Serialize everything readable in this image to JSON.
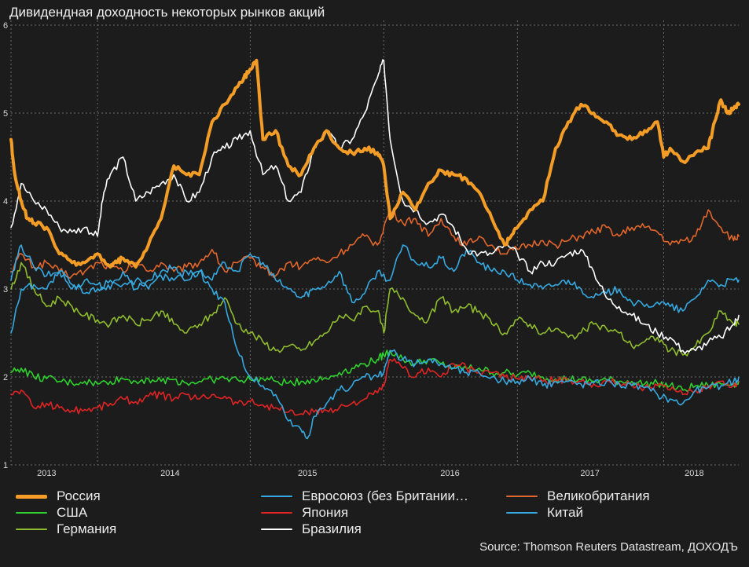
{
  "chart_data": {
    "type": "line",
    "title": "Дивидендная доходность некоторых рынков акций",
    "source": "Source: Thomson Reuters Datastream, ДОХОДЪ",
    "xlabel": "",
    "ylabel": "",
    "xlim": [
      2012.62,
      2018.34
    ],
    "ylim": [
      1,
      6
    ],
    "y_ticks": [
      "1",
      "2",
      "3",
      "4",
      "5",
      "6"
    ],
    "x_ticks": [
      {
        "label": "2013",
        "x": 2012.9
      },
      {
        "label": "2014",
        "x": 2013.87
      },
      {
        "label": "2015",
        "x": 2014.95
      },
      {
        "label": "2016",
        "x": 2016.07
      },
      {
        "label": "2017",
        "x": 2017.17
      },
      {
        "label": "2018",
        "x": 2017.99
      }
    ],
    "grid_lines_x": [
      2012.62,
      2013.3,
      2014.5,
      2015.55,
      2016.6,
      2017.75
    ],
    "grid": true,
    "legend_position": "bottom",
    "series": [
      {
        "name": "Великобритания",
        "color": "#e2662c",
        "width": 1.6,
        "x": [
          2012.62,
          2012.7,
          2012.8,
          2012.9,
          2013.0,
          2013.1,
          2013.2,
          2013.3,
          2013.4,
          2013.5,
          2013.6,
          2013.7,
          2013.8,
          2013.9,
          2014.0,
          2014.1,
          2014.2,
          2014.3,
          2014.4,
          2014.5,
          2014.6,
          2014.7,
          2014.8,
          2014.9,
          2015.0,
          2015.1,
          2015.2,
          2015.3,
          2015.4,
          2015.5,
          2015.55,
          2015.6,
          2015.7,
          2015.8,
          2015.9,
          2016.0,
          2016.1,
          2016.2,
          2016.3,
          2016.4,
          2016.5,
          2016.6,
          2016.7,
          2016.8,
          2016.9,
          2017.0,
          2017.1,
          2017.2,
          2017.3,
          2017.4,
          2017.5,
          2017.6,
          2017.7,
          2017.8,
          2017.9,
          2018.0,
          2018.1,
          2018.2,
          2018.3,
          2018.34
        ],
        "y": [
          3.2,
          3.4,
          3.25,
          3.3,
          3.2,
          3.15,
          3.2,
          3.3,
          3.25,
          3.2,
          3.3,
          3.2,
          3.3,
          3.2,
          3.25,
          3.3,
          3.45,
          3.2,
          3.3,
          3.35,
          3.25,
          3.15,
          3.3,
          3.25,
          3.35,
          3.3,
          3.4,
          3.5,
          3.6,
          3.5,
          3.7,
          3.9,
          3.75,
          3.8,
          3.6,
          3.8,
          3.6,
          3.5,
          3.6,
          3.5,
          3.4,
          3.45,
          3.5,
          3.55,
          3.5,
          3.55,
          3.6,
          3.65,
          3.7,
          3.6,
          3.7,
          3.7,
          3.65,
          3.5,
          3.55,
          3.6,
          3.9,
          3.7,
          3.55,
          3.6
        ]
      },
      {
        "name": "Евросоюз (без Британии…",
        "color": "#36a9e1",
        "width": 1.6,
        "x": [
          2012.62,
          2012.7,
          2012.8,
          2012.9,
          2013.0,
          2013.1,
          2013.2,
          2013.3,
          2013.4,
          2013.5,
          2013.6,
          2013.7,
          2013.8,
          2013.9,
          2014.0,
          2014.1,
          2014.2,
          2014.3,
          2014.4,
          2014.5,
          2014.6,
          2014.7,
          2014.8,
          2014.9,
          2014.95,
          2015.0,
          2015.1,
          2015.2,
          2015.3,
          2015.4,
          2015.5,
          2015.6,
          2015.7,
          2015.8,
          2015.9,
          2016.0,
          2016.1,
          2016.2,
          2016.3,
          2016.4,
          2016.5,
          2016.6,
          2016.7,
          2016.8,
          2016.9,
          2017.0,
          2017.1,
          2017.2,
          2017.3,
          2017.4,
          2017.5,
          2017.6,
          2017.7,
          2017.8,
          2017.9,
          2018.0,
          2018.1,
          2018.2,
          2018.3,
          2018.34
        ],
        "y": [
          3.1,
          3.5,
          3.25,
          3.15,
          3.2,
          3.0,
          3.1,
          3.05,
          3.0,
          3.2,
          3.0,
          3.1,
          3.2,
          3.25,
          3.1,
          3.2,
          3.1,
          3.3,
          3.2,
          3.4,
          3.3,
          3.1,
          3.0,
          2.9,
          2.95,
          3.0,
          3.05,
          3.2,
          2.85,
          2.95,
          3.2,
          3.1,
          3.5,
          3.3,
          3.25,
          3.35,
          3.2,
          3.45,
          3.3,
          3.2,
          3.2,
          3.1,
          3.05,
          3.0,
          3.05,
          3.1,
          3.0,
          2.9,
          2.95,
          3.0,
          2.85,
          2.8,
          2.85,
          2.8,
          2.75,
          2.9,
          3.1,
          3.05,
          3.1,
          3.1
        ]
      },
      {
        "name": "Германия",
        "color": "#8fbc2e",
        "width": 1.6,
        "x": [
          2012.62,
          2012.7,
          2012.8,
          2012.9,
          2013.0,
          2013.1,
          2013.2,
          2013.3,
          2013.4,
          2013.5,
          2013.6,
          2013.7,
          2013.8,
          2013.9,
          2014.0,
          2014.1,
          2014.2,
          2014.3,
          2014.4,
          2014.5,
          2014.6,
          2014.7,
          2014.8,
          2014.9,
          2015.0,
          2015.1,
          2015.2,
          2015.3,
          2015.4,
          2015.5,
          2015.55,
          2015.6,
          2015.7,
          2015.8,
          2015.9,
          2016.0,
          2016.1,
          2016.2,
          2016.3,
          2016.4,
          2016.5,
          2016.6,
          2016.7,
          2016.8,
          2016.9,
          2017.0,
          2017.1,
          2017.2,
          2017.3,
          2017.4,
          2017.5,
          2017.6,
          2017.7,
          2017.8,
          2017.9,
          2018.0,
          2018.1,
          2018.2,
          2018.3,
          2018.34
        ],
        "y": [
          3.0,
          3.3,
          3.0,
          2.8,
          2.9,
          2.8,
          2.7,
          2.65,
          2.6,
          2.7,
          2.6,
          2.65,
          2.75,
          2.6,
          2.5,
          2.6,
          2.7,
          2.9,
          2.6,
          2.5,
          2.4,
          2.3,
          2.35,
          2.3,
          2.4,
          2.5,
          2.7,
          2.65,
          2.8,
          2.75,
          2.5,
          3.0,
          2.9,
          2.7,
          2.65,
          2.9,
          2.75,
          2.8,
          2.75,
          2.6,
          2.5,
          2.65,
          2.6,
          2.5,
          2.55,
          2.45,
          2.5,
          2.6,
          2.55,
          2.5,
          2.35,
          2.4,
          2.45,
          2.3,
          2.25,
          2.35,
          2.5,
          2.75,
          2.6,
          2.6
        ]
      },
      {
        "name": "США",
        "color": "#2ed12e",
        "width": 1.6,
        "x": [
          2012.62,
          2012.7,
          2012.8,
          2012.9,
          2013.0,
          2013.1,
          2013.2,
          2013.3,
          2013.4,
          2013.5,
          2013.6,
          2013.7,
          2013.8,
          2013.9,
          2014.0,
          2014.1,
          2014.2,
          2014.3,
          2014.4,
          2014.5,
          2014.6,
          2014.7,
          2014.8,
          2014.9,
          2015.0,
          2015.1,
          2015.2,
          2015.3,
          2015.4,
          2015.5,
          2015.55,
          2015.6,
          2015.7,
          2015.8,
          2015.9,
          2016.0,
          2016.1,
          2016.2,
          2016.3,
          2016.4,
          2016.5,
          2016.6,
          2016.7,
          2016.8,
          2016.9,
          2017.0,
          2017.1,
          2017.2,
          2017.3,
          2017.4,
          2017.5,
          2017.6,
          2017.7,
          2017.8,
          2017.9,
          2018.0,
          2018.1,
          2018.2,
          2018.3,
          2018.34
        ],
        "y": [
          2.05,
          2.1,
          2.0,
          1.98,
          1.95,
          1.93,
          1.95,
          1.92,
          1.95,
          1.98,
          1.95,
          1.98,
          1.95,
          1.97,
          1.93,
          1.95,
          1.97,
          1.98,
          1.97,
          1.97,
          1.98,
          1.95,
          1.93,
          1.95,
          1.97,
          1.98,
          2.05,
          2.1,
          2.15,
          2.2,
          2.25,
          2.3,
          2.2,
          2.15,
          2.2,
          2.15,
          2.1,
          2.1,
          2.1,
          2.05,
          2.05,
          2.02,
          2.05,
          2.0,
          1.98,
          1.98,
          1.97,
          1.95,
          1.97,
          1.95,
          1.95,
          1.92,
          1.93,
          1.9,
          1.85,
          1.9,
          1.9,
          1.92,
          1.92,
          1.95
        ]
      },
      {
        "name": "Япония",
        "color": "#e02424",
        "width": 1.6,
        "x": [
          2012.62,
          2012.7,
          2012.8,
          2012.9,
          2013.0,
          2013.1,
          2013.2,
          2013.3,
          2013.4,
          2013.5,
          2013.6,
          2013.7,
          2013.8,
          2013.9,
          2014.0,
          2014.1,
          2014.2,
          2014.3,
          2014.4,
          2014.5,
          2014.6,
          2014.7,
          2014.8,
          2014.9,
          2015.0,
          2015.1,
          2015.2,
          2015.3,
          2015.4,
          2015.5,
          2015.55,
          2015.6,
          2015.7,
          2015.8,
          2015.9,
          2016.0,
          2016.1,
          2016.2,
          2016.3,
          2016.4,
          2016.5,
          2016.6,
          2016.7,
          2016.8,
          2016.9,
          2017.0,
          2017.1,
          2017.2,
          2017.3,
          2017.4,
          2017.5,
          2017.6,
          2017.7,
          2017.8,
          2017.9,
          2018.0,
          2018.1,
          2018.2,
          2018.3,
          2018.34
        ],
        "y": [
          1.8,
          1.85,
          1.65,
          1.7,
          1.65,
          1.62,
          1.63,
          1.65,
          1.7,
          1.75,
          1.72,
          1.78,
          1.8,
          1.75,
          1.8,
          1.75,
          1.8,
          1.78,
          1.7,
          1.72,
          1.68,
          1.65,
          1.6,
          1.58,
          1.6,
          1.62,
          1.65,
          1.7,
          1.75,
          1.82,
          1.9,
          2.2,
          2.1,
          2.0,
          2.1,
          2.0,
          2.15,
          2.1,
          2.05,
          2.05,
          2.0,
          1.98,
          2.0,
          1.95,
          1.97,
          1.95,
          1.95,
          1.92,
          1.95,
          1.93,
          1.92,
          1.88,
          1.9,
          1.85,
          1.8,
          1.85,
          1.9,
          1.95,
          1.9,
          1.95
        ]
      },
      {
        "name": "Китай",
        "color": "#36a9e1",
        "width": 1.6,
        "x": [
          2012.62,
          2012.7,
          2012.8,
          2012.9,
          2013.0,
          2013.1,
          2013.2,
          2013.3,
          2013.4,
          2013.5,
          2013.6,
          2013.7,
          2013.8,
          2013.9,
          2014.0,
          2014.1,
          2014.2,
          2014.3,
          2014.4,
          2014.5,
          2014.6,
          2014.7,
          2014.8,
          2014.9,
          2014.95,
          2015.0,
          2015.1,
          2015.2,
          2015.3,
          2015.4,
          2015.5,
          2015.55,
          2015.6,
          2015.7,
          2015.8,
          2015.9,
          2016.0,
          2016.1,
          2016.2,
          2016.3,
          2016.4,
          2016.5,
          2016.6,
          2016.7,
          2016.8,
          2016.9,
          2017.0,
          2017.1,
          2017.2,
          2017.3,
          2017.4,
          2017.5,
          2017.6,
          2017.7,
          2017.8,
          2017.9,
          2018.0,
          2018.1,
          2018.2,
          2018.3,
          2018.34
        ],
        "y": [
          2.5,
          3.0,
          3.05,
          3.0,
          3.2,
          3.05,
          2.95,
          3.0,
          3.1,
          3.05,
          3.1,
          3.0,
          3.15,
          3.1,
          3.2,
          3.2,
          3.0,
          2.85,
          2.3,
          2.0,
          1.9,
          1.8,
          1.5,
          1.4,
          1.3,
          1.55,
          1.7,
          1.85,
          1.9,
          2.0,
          2.0,
          2.05,
          2.3,
          2.2,
          2.15,
          2.2,
          2.15,
          2.1,
          2.05,
          2.05,
          2.0,
          1.95,
          1.95,
          1.98,
          1.9,
          1.95,
          1.95,
          1.92,
          1.93,
          1.95,
          1.92,
          1.9,
          1.88,
          1.8,
          1.75,
          1.7,
          1.85,
          1.88,
          1.9,
          1.95,
          2.0
        ]
      },
      {
        "name": "Бразилия",
        "color": "#ffffff",
        "width": 1.6,
        "x": [
          2012.62,
          2012.7,
          2012.8,
          2012.9,
          2013.0,
          2013.1,
          2013.2,
          2013.3,
          2013.35,
          2013.4,
          2013.5,
          2013.6,
          2013.7,
          2013.8,
          2013.9,
          2014.0,
          2014.1,
          2014.2,
          2014.3,
          2014.4,
          2014.5,
          2014.6,
          2014.7,
          2014.8,
          2014.9,
          2015.0,
          2015.1,
          2015.2,
          2015.3,
          2015.4,
          2015.5,
          2015.55,
          2015.6,
          2015.7,
          2015.8,
          2015.9,
          2016.0,
          2016.1,
          2016.2,
          2016.3,
          2016.4,
          2016.5,
          2016.6,
          2016.7,
          2016.8,
          2016.9,
          2017.0,
          2017.1,
          2017.2,
          2017.3,
          2017.4,
          2017.5,
          2017.6,
          2017.7,
          2017.8,
          2017.9,
          2018.0,
          2018.1,
          2018.2,
          2018.3,
          2018.34
        ],
        "y": [
          3.7,
          4.2,
          4.0,
          3.9,
          3.7,
          3.65,
          3.7,
          3.6,
          4.1,
          4.3,
          4.5,
          4.0,
          4.1,
          4.2,
          4.3,
          4.0,
          4.1,
          4.5,
          4.6,
          4.7,
          4.8,
          4.3,
          4.4,
          4.0,
          4.1,
          4.6,
          4.8,
          4.6,
          4.7,
          5.0,
          5.4,
          5.6,
          4.7,
          4.0,
          3.9,
          3.75,
          3.85,
          3.7,
          3.45,
          3.4,
          3.4,
          3.5,
          3.4,
          3.2,
          3.3,
          3.3,
          3.4,
          3.45,
          3.2,
          2.9,
          2.8,
          2.7,
          2.6,
          2.5,
          2.45,
          2.3,
          2.3,
          2.4,
          2.45,
          2.6,
          2.7
        ]
      },
      {
        "name": "Россия",
        "color": "#f39c26",
        "width": 4,
        "x": [
          2012.62,
          2012.65,
          2012.7,
          2012.75,
          2012.8,
          2012.9,
          2013.0,
          2013.1,
          2013.2,
          2013.3,
          2013.4,
          2013.45,
          2013.5,
          2013.6,
          2013.7,
          2013.8,
          2013.9,
          2014.0,
          2014.1,
          2014.2,
          2014.3,
          2014.4,
          2014.45,
          2014.5,
          2014.55,
          2014.6,
          2014.7,
          2014.8,
          2014.9,
          2015.0,
          2015.1,
          2015.2,
          2015.3,
          2015.4,
          2015.5,
          2015.55,
          2015.6,
          2015.7,
          2015.8,
          2015.9,
          2016.0,
          2016.1,
          2016.2,
          2016.3,
          2016.4,
          2016.5,
          2016.55,
          2016.6,
          2016.7,
          2016.8,
          2016.9,
          2017.0,
          2017.1,
          2017.2,
          2017.3,
          2017.4,
          2017.5,
          2017.6,
          2017.7,
          2017.75,
          2017.8,
          2017.9,
          2018.0,
          2018.1,
          2018.15,
          2018.2,
          2018.25,
          2018.3,
          2018.34
        ],
        "y": [
          4.7,
          4.3,
          4.0,
          3.8,
          3.75,
          3.7,
          3.4,
          3.3,
          3.3,
          3.4,
          3.25,
          3.3,
          3.35,
          3.25,
          3.5,
          3.8,
          4.4,
          4.3,
          4.3,
          4.9,
          5.1,
          5.3,
          5.4,
          5.5,
          5.6,
          4.7,
          4.8,
          4.4,
          4.3,
          4.6,
          4.8,
          4.6,
          4.55,
          4.6,
          4.55,
          4.4,
          3.8,
          4.1,
          3.9,
          4.2,
          4.35,
          4.3,
          4.25,
          4.1,
          3.8,
          3.5,
          3.6,
          3.7,
          3.9,
          4.0,
          4.6,
          4.9,
          5.1,
          5.0,
          4.9,
          4.75,
          4.7,
          4.8,
          4.9,
          4.5,
          4.6,
          4.45,
          4.55,
          4.6,
          4.9,
          5.15,
          5.0,
          5.05,
          5.1
        ]
      }
    ],
    "legend": [
      {
        "name": "Россия",
        "color": "#f39c26",
        "thick": true,
        "col": 0,
        "row": 0
      },
      {
        "name": "США",
        "color": "#2ed12e",
        "thick": false,
        "col": 0,
        "row": 1
      },
      {
        "name": "Германия",
        "color": "#8fbc2e",
        "thick": false,
        "col": 0,
        "row": 2
      },
      {
        "name": "Евросоюз (без Британии…",
        "color": "#36a9e1",
        "thick": false,
        "col": 1,
        "row": 0
      },
      {
        "name": "Япония",
        "color": "#e02424",
        "thick": false,
        "col": 1,
        "row": 1
      },
      {
        "name": "Бразилия",
        "color": "#ffffff",
        "thick": false,
        "col": 1,
        "row": 2
      },
      {
        "name": "Великобритания",
        "color": "#e2662c",
        "thick": false,
        "col": 2,
        "row": 0
      },
      {
        "name": "Китай",
        "color": "#36a9e1",
        "thick": false,
        "col": 2,
        "row": 1
      }
    ]
  }
}
